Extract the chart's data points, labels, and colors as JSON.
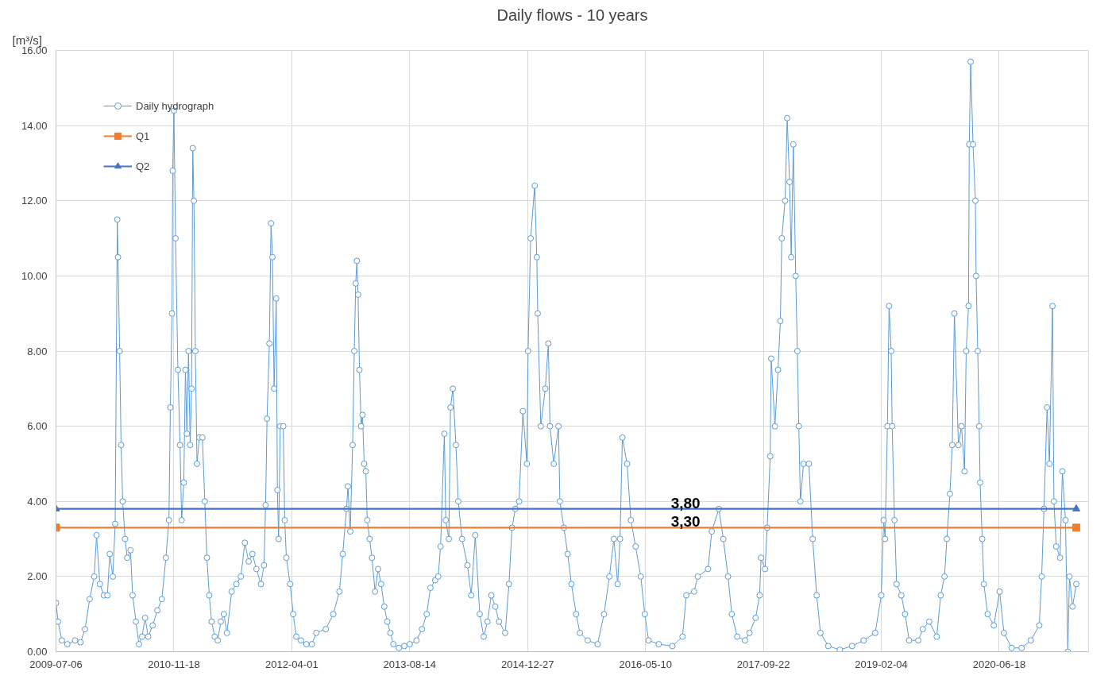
{
  "chart_data": {
    "type": "line",
    "title": "Daily flows - 10 years",
    "ylabel": "[m³/s]",
    "xlim": [
      "2009-07-06",
      "2021-07-02"
    ],
    "xticks": [
      "2009-07-06",
      "2010-11-18",
      "2012-04-01",
      "2013-08-14",
      "2014-12-27",
      "2016-05-10",
      "2017-09-22",
      "2019-02-04",
      "2020-06-18"
    ],
    "ylim": [
      0,
      16
    ],
    "yticks": [
      {
        "value": 0,
        "label": "0.00"
      },
      {
        "value": 2,
        "label": "2.00"
      },
      {
        "value": 4,
        "label": "4.00"
      },
      {
        "value": 6,
        "label": "6.00"
      },
      {
        "value": 8,
        "label": "8.00"
      },
      {
        "value": 10,
        "label": "10.00"
      },
      {
        "value": 12,
        "label": "12.00"
      },
      {
        "value": 14,
        "label": "14.00"
      },
      {
        "value": 16,
        "label": "16.00"
      }
    ],
    "grid": true,
    "legend": "top left",
    "series": [
      {
        "name": "Daily hydrograph",
        "color": "#5b9bd5",
        "marker": "circle",
        "x": [
          "2009-07-06",
          "2009-07-15",
          "2009-07-31",
          "2009-08-23",
          "2009-09-25",
          "2009-10-18",
          "2009-11-06",
          "2009-11-26",
          "2009-12-15",
          "2009-12-25",
          "2010-01-08",
          "2010-01-25",
          "2010-02-09",
          "2010-02-19",
          "2010-03-04",
          "2010-03-14",
          "2010-03-23",
          "2010-03-26",
          "2010-04-02",
          "2010-04-08",
          "2010-04-15",
          "2010-04-25",
          "2010-05-04",
          "2010-05-18",
          "2010-05-27",
          "2010-06-10",
          "2010-06-23",
          "2010-07-06",
          "2010-07-19",
          "2010-08-01",
          "2010-08-20",
          "2010-09-09",
          "2010-09-28",
          "2010-10-15",
          "2010-10-28",
          "2010-11-03",
          "2010-11-10",
          "2010-11-13",
          "2010-11-18",
          "2010-11-25",
          "2010-12-05",
          "2010-12-14",
          "2010-12-21",
          "2010-12-30",
          "2011-01-06",
          "2011-01-12",
          "2011-01-19",
          "2011-01-26",
          "2011-02-01",
          "2011-02-06",
          "2011-02-11",
          "2011-02-17",
          "2011-02-24",
          "2011-03-06",
          "2011-03-19",
          "2011-03-29",
          "2011-04-07",
          "2011-04-17",
          "2011-04-27",
          "2011-05-10",
          "2011-05-23",
          "2011-06-05",
          "2011-06-18",
          "2011-07-01",
          "2011-07-21",
          "2011-08-10",
          "2011-08-29",
          "2011-09-15",
          "2011-10-01",
          "2011-10-17",
          "2011-11-03",
          "2011-11-22",
          "2011-12-05",
          "2011-12-12",
          "2011-12-18",
          "2011-12-28",
          "2012-01-04",
          "2012-01-10",
          "2012-01-17",
          "2012-01-26",
          "2012-01-31",
          "2012-02-05",
          "2012-02-12",
          "2012-02-25",
          "2012-03-02",
          "2012-03-09",
          "2012-03-25",
          "2012-04-07",
          "2012-04-20",
          "2012-05-10",
          "2012-06-02",
          "2012-06-25",
          "2012-07-14",
          "2012-08-23",
          "2012-09-24",
          "2012-10-20",
          "2012-11-03",
          "2012-11-19",
          "2012-11-25",
          "2012-12-05",
          "2012-12-15",
          "2012-12-22",
          "2012-12-28",
          "2013-01-02",
          "2013-01-07",
          "2013-01-13",
          "2013-01-20",
          "2013-01-26",
          "2013-02-02",
          "2013-02-09",
          "2013-02-15",
          "2013-02-25",
          "2013-03-07",
          "2013-03-20",
          "2013-04-02",
          "2013-04-15",
          "2013-04-28",
          "2013-05-11",
          "2013-05-24",
          "2013-06-06",
          "2013-06-29",
          "2013-07-22",
          "2013-08-14",
          "2013-09-12",
          "2013-10-05",
          "2013-10-25",
          "2013-11-10",
          "2013-11-30",
          "2013-12-13",
          "2013-12-23",
          "2014-01-08",
          "2014-01-14",
          "2014-01-27",
          "2014-02-03",
          "2014-02-13",
          "2014-02-26",
          "2014-03-08",
          "2014-03-24",
          "2014-04-16",
          "2014-05-02",
          "2014-05-19",
          "2014-06-07",
          "2014-06-24",
          "2014-07-10",
          "2014-07-26",
          "2014-08-12",
          "2014-08-28",
          "2014-09-23",
          "2014-10-09",
          "2014-10-22",
          "2014-11-05",
          "2014-11-21",
          "2014-12-07",
          "2014-12-24",
          "2014-12-29",
          "2015-01-09",
          "2015-01-26",
          "2015-02-04",
          "2015-02-08",
          "2015-02-21",
          "2015-03-12",
          "2015-03-25",
          "2015-04-01",
          "2015-04-17",
          "2015-05-07",
          "2015-05-13",
          "2015-05-30",
          "2015-06-15",
          "2015-07-01",
          "2015-07-21",
          "2015-08-06",
          "2015-09-08",
          "2015-10-20",
          "2015-11-16",
          "2015-12-09",
          "2015-12-28",
          "2016-01-13",
          "2016-01-23",
          "2016-02-02",
          "2016-02-22",
          "2016-03-09",
          "2016-03-29",
          "2016-04-20",
          "2016-05-07",
          "2016-05-23",
          "2016-07-05",
          "2016-09-01",
          "2016-10-14",
          "2016-10-30",
          "2016-12-02",
          "2016-12-18",
          "2017-01-30",
          "2017-02-15",
          "2017-03-17",
          "2017-04-05",
          "2017-04-25",
          "2017-05-11",
          "2017-06-03",
          "2017-07-06",
          "2017-07-25",
          "2017-08-20",
          "2017-09-06",
          "2017-09-12",
          "2017-09-29",
          "2017-10-08",
          "2017-10-21",
          "2017-10-25",
          "2017-11-10",
          "2017-11-23",
          "2017-12-03",
          "2017-12-09",
          "2017-12-23",
          "2018-01-01",
          "2018-01-11",
          "2018-01-18",
          "2018-01-27",
          "2018-02-06",
          "2018-02-13",
          "2018-02-19",
          "2018-02-26",
          "2018-03-11",
          "2018-04-03",
          "2018-04-19",
          "2018-05-06",
          "2018-05-22",
          "2018-06-24",
          "2018-08-12",
          "2018-10-03",
          "2018-11-21",
          "2019-01-09",
          "2019-02-04",
          "2019-02-14",
          "2019-02-20",
          "2019-03-02",
          "2019-03-09",
          "2019-03-18",
          "2019-03-22",
          "2019-04-01",
          "2019-04-10",
          "2019-04-30",
          "2019-05-16",
          "2019-06-02",
          "2019-07-11",
          "2019-07-30",
          "2019-08-26",
          "2019-09-27",
          "2019-10-14",
          "2019-10-30",
          "2019-11-09",
          "2019-11-22",
          "2019-12-02",
          "2019-12-11",
          "2019-12-28",
          "2020-01-10",
          "2020-01-23",
          "2020-01-30",
          "2020-02-09",
          "2020-02-12",
          "2020-02-18",
          "2020-02-28",
          "2020-03-09",
          "2020-03-12",
          "2020-03-19",
          "2020-03-25",
          "2020-03-29",
          "2020-04-07",
          "2020-04-14",
          "2020-04-30",
          "2020-05-26",
          "2020-06-20",
          "2020-07-08",
          "2020-08-10",
          "2020-09-21",
          "2020-10-30",
          "2020-12-05",
          "2020-12-15",
          "2020-12-25",
          "2021-01-07",
          "2021-01-17",
          "2021-01-30",
          "2021-02-05",
          "2021-02-15",
          "2021-03-03",
          "2021-03-13",
          "2021-03-26",
          "2021-04-05",
          "2021-04-12",
          "2021-04-25",
          "2021-05-11"
        ],
        "values": [
          1.3,
          0.8,
          0.3,
          0.2,
          0.3,
          0.25,
          0.6,
          1.4,
          2.0,
          3.1,
          1.8,
          1.5,
          1.5,
          2.6,
          2.0,
          3.4,
          11.5,
          10.5,
          8.0,
          5.5,
          4.0,
          3.0,
          2.5,
          2.7,
          1.5,
          0.8,
          0.2,
          0.4,
          0.9,
          0.4,
          0.7,
          1.1,
          1.4,
          2.5,
          3.5,
          6.5,
          9.0,
          12.8,
          14.4,
          11.0,
          7.5,
          5.5,
          3.5,
          4.5,
          7.5,
          5.8,
          8.0,
          5.5,
          7.0,
          13.4,
          12.0,
          8.0,
          5.0,
          5.7,
          5.7,
          4.0,
          2.5,
          1.5,
          0.8,
          0.4,
          0.3,
          0.8,
          1.0,
          0.5,
          1.6,
          1.8,
          2.0,
          2.9,
          2.4,
          2.6,
          2.2,
          1.8,
          2.3,
          3.9,
          6.2,
          8.2,
          11.4,
          10.5,
          7.0,
          9.4,
          4.3,
          3.0,
          6.0,
          6.0,
          3.5,
          2.5,
          1.8,
          1.0,
          0.4,
          0.3,
          0.2,
          0.2,
          0.5,
          0.6,
          1.0,
          1.6,
          2.6,
          3.8,
          4.4,
          3.2,
          5.5,
          8.0,
          9.8,
          10.4,
          9.5,
          7.5,
          6.0,
          6.3,
          5.0,
          4.8,
          3.5,
          3.0,
          2.5,
          1.6,
          2.2,
          1.8,
          1.2,
          0.8,
          0.5,
          0.2,
          0.1,
          0.15,
          0.2,
          0.3,
          0.6,
          1.0,
          1.7,
          1.9,
          2.0,
          2.8,
          5.8,
          3.5,
          3.0,
          6.5,
          7.0,
          5.5,
          4.0,
          3.0,
          2.3,
          1.5,
          3.1,
          1.0,
          0.4,
          0.8,
          1.5,
          1.2,
          0.8,
          0.5,
          1.8,
          3.3,
          3.8,
          4.0,
          6.4,
          5.0,
          8.0,
          11.0,
          12.4,
          10.5,
          9.0,
          6.0,
          7.0,
          8.2,
          6.0,
          5.0,
          6.0,
          4.0,
          3.3,
          2.6,
          1.8,
          1.0,
          0.5,
          0.3,
          0.2,
          1.0,
          2.0,
          3.0,
          1.8,
          3.0,
          5.7,
          5.0,
          3.5,
          2.8,
          2.0,
          1.0,
          0.3,
          0.2,
          0.15,
          0.4,
          1.5,
          1.6,
          2.0,
          2.2,
          3.2,
          3.8,
          3.0,
          2.0,
          1.0,
          0.4,
          0.3,
          0.5,
          0.9,
          1.5,
          2.5,
          2.2,
          3.3,
          5.2,
          7.8,
          6.0,
          7.5,
          8.8,
          11.0,
          12.0,
          14.2,
          12.5,
          10.5,
          13.5,
          10.0,
          8.0,
          6.0,
          4.0,
          5.0,
          5.0,
          3.0,
          1.5,
          0.5,
          0.15,
          0.05,
          0.15,
          0.3,
          0.5,
          1.5,
          3.5,
          3.0,
          6.0,
          9.2,
          8.0,
          6.0,
          3.5,
          1.8,
          1.5,
          1.0,
          0.3,
          0.3,
          0.6,
          0.8,
          0.4,
          1.5,
          2.0,
          3.0,
          4.2,
          5.5,
          9.0,
          5.5,
          6.0,
          4.8,
          8.0,
          9.2,
          13.5,
          15.7,
          13.5,
          12.0,
          10.0,
          8.0,
          6.0,
          4.5,
          3.0,
          1.8,
          1.0,
          0.7,
          1.6,
          0.5,
          0.1,
          0.1,
          0.3,
          0.7,
          2.0,
          3.8,
          6.5,
          5.0,
          9.2,
          4.0,
          2.8,
          2.5,
          4.8,
          3.5,
          0.0,
          2.0,
          1.2,
          1.8
        ]
      },
      {
        "name": "Q1",
        "color": "#ed7d31",
        "marker": "square",
        "x": [
          "2009-07-06",
          "2021-05-11"
        ],
        "values": [
          3.3,
          3.3
        ]
      },
      {
        "name": "Q2",
        "color": "#4472c4",
        "marker": "triangle",
        "x": [
          "2009-07-06",
          "2021-05-11"
        ],
        "values": [
          3.8,
          3.8
        ]
      }
    ],
    "annotations": [
      {
        "text": "3,80",
        "x": "2016-10-27",
        "y": 3.8
      },
      {
        "text": "3,30",
        "x": "2016-10-27",
        "y": 3.3
      }
    ]
  }
}
